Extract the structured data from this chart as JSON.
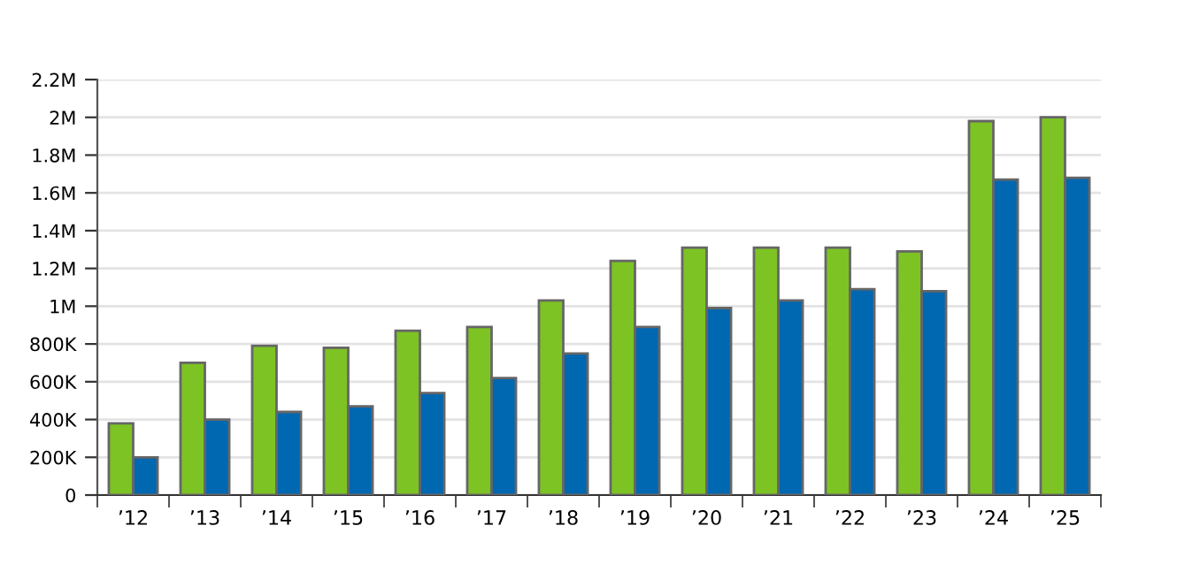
{
  "chart_data": {
    "type": "bar",
    "categories": [
      "’12",
      "’13",
      "’14",
      "’15",
      "’16",
      "’17",
      "’18",
      "’19",
      "’20",
      "’21",
      "’22",
      "’23",
      "’24",
      "’25"
    ],
    "series": [
      {
        "color": "#7dc323",
        "values": [
          380000,
          700000,
          790000,
          780000,
          870000,
          890000,
          1030000,
          1240000,
          1310000,
          1310000,
          1310000,
          1290000,
          1980000,
          2000000
        ]
      },
      {
        "color": "#0067b1",
        "values": [
          200000,
          400000,
          440000,
          470000,
          540000,
          620000,
          750000,
          890000,
          990000,
          1030000,
          1090000,
          1080000,
          1670000,
          1680000
        ]
      }
    ],
    "ylim": [
      0,
      2200000
    ],
    "yticks": [
      0,
      {
        "value": 200000,
        "label": "200K"
      },
      {
        "value": 400000,
        "label": "400K"
      },
      {
        "value": 600000,
        "label": "600K"
      },
      {
        "value": 800000,
        "label": "800K"
      },
      {
        "value": 1000000,
        "label": "1M"
      },
      {
        "value": 1200000,
        "label": "1.2M"
      },
      {
        "value": 1400000,
        "label": "1.4M"
      },
      {
        "value": 1600000,
        "label": "1.6M"
      },
      {
        "value": 1800000,
        "label": "1.8M"
      },
      {
        "value": 2000000,
        "label": "2M"
      },
      {
        "value": 2200000,
        "label": "2.2M"
      }
    ],
    "grid": "y"
  }
}
